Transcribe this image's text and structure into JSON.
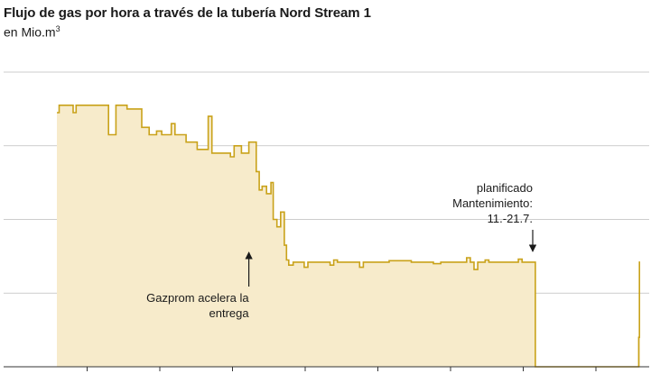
{
  "header": {
    "title": "Flujo de gas por hora a través de la tubería Nord Stream 1",
    "subtitle": "en Mio.m",
    "subtitle_sup": "3"
  },
  "colors": {
    "fill": "#f7ebcb",
    "line": "#c9a21a",
    "grid": "#bdbdbd",
    "axis": "#333333"
  },
  "chart_data": {
    "type": "area",
    "title": "Flujo de gas por hora a través de la tubería Nord Stream 1",
    "ylabel": "en Mio.m³",
    "ylim": [
      0,
      4
    ],
    "grid": true,
    "note": "Tick labels are not shown in the image; y values are approximate, read relative to the gridlines.",
    "series": [
      {
        "points": [
          [
            0.0,
            3.45
          ],
          [
            0.3,
            3.45
          ],
          [
            0.3,
            3.55
          ],
          [
            2.2,
            3.55
          ],
          [
            2.2,
            3.45
          ],
          [
            2.6,
            3.45
          ],
          [
            2.6,
            3.55
          ],
          [
            7.0,
            3.55
          ],
          [
            7.0,
            3.15
          ],
          [
            8.0,
            3.15
          ],
          [
            8.0,
            3.55
          ],
          [
            9.5,
            3.55
          ],
          [
            9.5,
            3.5
          ],
          [
            11.5,
            3.5
          ],
          [
            11.5,
            3.25
          ],
          [
            12.5,
            3.25
          ],
          [
            12.5,
            3.15
          ],
          [
            13.5,
            3.15
          ],
          [
            13.5,
            3.2
          ],
          [
            14.2,
            3.2
          ],
          [
            14.2,
            3.15
          ],
          [
            15.5,
            3.15
          ],
          [
            15.5,
            3.3
          ],
          [
            16.0,
            3.3
          ],
          [
            16.0,
            3.15
          ],
          [
            17.5,
            3.15
          ],
          [
            17.5,
            3.05
          ],
          [
            19.0,
            3.05
          ],
          [
            19.0,
            2.95
          ],
          [
            20.5,
            2.95
          ],
          [
            20.5,
            3.4
          ],
          [
            21.0,
            3.4
          ],
          [
            21.0,
            2.9
          ],
          [
            23.5,
            2.9
          ],
          [
            23.5,
            2.85
          ],
          [
            24.0,
            2.85
          ],
          [
            24.0,
            3.0
          ],
          [
            25.0,
            3.0
          ],
          [
            25.0,
            2.9
          ],
          [
            26.0,
            2.9
          ],
          [
            26.0,
            3.05
          ],
          [
            27.0,
            3.05
          ],
          [
            27.0,
            2.65
          ],
          [
            27.4,
            2.65
          ],
          [
            27.4,
            2.4
          ],
          [
            27.8,
            2.4
          ],
          [
            27.8,
            2.45
          ],
          [
            28.4,
            2.45
          ],
          [
            28.4,
            2.35
          ],
          [
            29.0,
            2.35
          ],
          [
            29.0,
            2.5
          ],
          [
            29.3,
            2.5
          ],
          [
            29.3,
            2.0
          ],
          [
            29.8,
            2.0
          ],
          [
            29.8,
            1.9
          ],
          [
            30.3,
            1.9
          ],
          [
            30.3,
            2.1
          ],
          [
            30.8,
            2.1
          ],
          [
            30.8,
            1.65
          ],
          [
            31.1,
            1.65
          ],
          [
            31.1,
            1.45
          ],
          [
            31.4,
            1.45
          ],
          [
            31.4,
            1.38
          ],
          [
            32.0,
            1.38
          ],
          [
            32.0,
            1.42
          ],
          [
            33.5,
            1.42
          ],
          [
            33.5,
            1.35
          ],
          [
            34.0,
            1.35
          ],
          [
            34.0,
            1.42
          ],
          [
            37.0,
            1.42
          ],
          [
            37.0,
            1.38
          ],
          [
            37.5,
            1.38
          ],
          [
            37.5,
            1.45
          ],
          [
            38.0,
            1.45
          ],
          [
            38.0,
            1.42
          ],
          [
            41.0,
            1.42
          ],
          [
            41.0,
            1.35
          ],
          [
            41.5,
            1.35
          ],
          [
            41.5,
            1.42
          ],
          [
            45.0,
            1.42
          ],
          [
            45.0,
            1.44
          ],
          [
            48.0,
            1.44
          ],
          [
            48.0,
            1.42
          ],
          [
            51.0,
            1.42
          ],
          [
            51.0,
            1.4
          ],
          [
            52.0,
            1.4
          ],
          [
            52.0,
            1.42
          ],
          [
            55.5,
            1.42
          ],
          [
            55.5,
            1.48
          ],
          [
            56.0,
            1.48
          ],
          [
            56.0,
            1.42
          ],
          [
            56.5,
            1.42
          ],
          [
            56.5,
            1.32
          ],
          [
            57.0,
            1.32
          ],
          [
            57.0,
            1.42
          ],
          [
            58.0,
            1.42
          ],
          [
            58.0,
            1.45
          ],
          [
            58.5,
            1.45
          ],
          [
            58.5,
            1.42
          ],
          [
            62.5,
            1.42
          ],
          [
            62.5,
            1.46
          ],
          [
            63.0,
            1.46
          ],
          [
            63.0,
            1.42
          ],
          [
            64.8,
            1.42
          ],
          [
            64.8,
            0.0
          ],
          [
            78.8,
            0.0
          ],
          [
            78.8,
            0.4
          ],
          [
            78.9,
            0.4
          ],
          [
            78.9,
            1.42
          ],
          [
            79.0,
            1.42
          ]
        ]
      }
    ],
    "annotations": [
      {
        "lines": [
          "Gazprom acelera la",
          "entrega"
        ],
        "x": 26.0,
        "y": 1.5,
        "arrow": "up"
      },
      {
        "lines": [
          "planificado",
          "Mantenimiento:",
          "11.-21.7."
        ],
        "x": 64.0,
        "y": 1.55,
        "arrow": "down"
      }
    ]
  }
}
